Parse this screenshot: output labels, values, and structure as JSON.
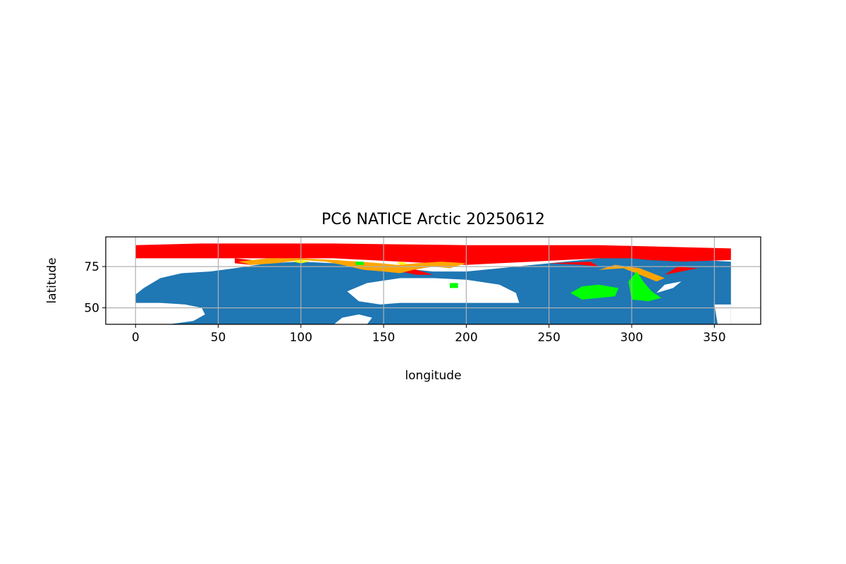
{
  "colors": {
    "ocean": "#1f77b4",
    "ice_high": "#ff0000",
    "ice_medium": "#ffa500",
    "ice_low": "#00ff00",
    "ice_trace": "#ffff00",
    "grid": "#b0b0b0",
    "background": "#ffffff"
  },
  "chart_data": {
    "type": "scatter",
    "title": "PC6 NATICE Arctic  20250612",
    "xlabel": "longitude",
    "ylabel": "latitude",
    "xlim": [
      -18,
      378
    ],
    "ylim": [
      40,
      93
    ],
    "xticks": [
      0,
      50,
      100,
      150,
      200,
      250,
      300,
      350
    ],
    "yticks": [
      50,
      75
    ],
    "grid": true,
    "legend": "none",
    "regions": [
      {
        "color_key": "ocean",
        "polygons": [
          [
            [
              0,
              53
            ],
            [
              0,
              58
            ],
            [
              5,
              62
            ],
            [
              15,
              68
            ],
            [
              28,
              71
            ],
            [
              45,
              72
            ],
            [
              60,
              74
            ],
            [
              80,
              77
            ],
            [
              100,
              78
            ],
            [
              120,
              77
            ],
            [
              140,
              76
            ],
            [
              160,
              74
            ],
            [
              180,
              72
            ],
            [
              200,
              72
            ],
            [
              220,
              74
            ],
            [
              240,
              76
            ],
            [
              260,
              78
            ],
            [
              280,
              80
            ],
            [
              300,
              81
            ],
            [
              320,
              80
            ],
            [
              340,
              79
            ],
            [
              360,
              78
            ],
            [
              360,
              40
            ],
            [
              0,
              40
            ]
          ]
        ]
      },
      {
        "color_key": "background",
        "polygons": [
          [
            [
              0,
              58
            ],
            [
              0,
              40
            ],
            [
              20,
              40
            ],
            [
              35,
              42
            ],
            [
              42,
              46
            ],
            [
              40,
              50
            ],
            [
              30,
              52
            ],
            [
              15,
              53
            ],
            [
              0,
              53
            ]
          ],
          [
            [
              0,
              44
            ],
            [
              0,
              40
            ],
            [
              4,
              40
            ],
            [
              3,
              43
            ]
          ],
          [
            [
              160,
              53
            ],
            [
              148,
              52
            ],
            [
              135,
              54
            ],
            [
              128,
              60
            ],
            [
              140,
              65
            ],
            [
              160,
              68
            ],
            [
              180,
              68
            ],
            [
              200,
              67
            ],
            [
              220,
              64
            ],
            [
              230,
              59
            ],
            [
              232,
              53
            ]
          ],
          [
            [
              315,
              59
            ],
            [
              320,
              64
            ],
            [
              330,
              66
            ],
            [
              325,
              62
            ]
          ],
          [
            [
              120,
              40
            ],
            [
              140,
              40
            ],
            [
              143,
              44
            ],
            [
              135,
              46
            ],
            [
              125,
              44
            ]
          ],
          [
            [
              350,
              52
            ],
            [
              360,
              52
            ],
            [
              360,
              40
            ],
            [
              352,
              40
            ]
          ]
        ]
      },
      {
        "color_key": "ice_high",
        "polygons": [
          [
            [
              0,
              80
            ],
            [
              0,
              88
            ],
            [
              40,
              89
            ],
            [
              120,
              89
            ],
            [
              200,
              88
            ],
            [
              280,
              88
            ],
            [
              320,
              87
            ],
            [
              360,
              86
            ],
            [
              360,
              79
            ],
            [
              330,
              78
            ],
            [
              310,
              79
            ],
            [
              300,
              80
            ],
            [
              280,
              80
            ],
            [
              260,
              79
            ],
            [
              240,
              78
            ],
            [
              220,
              77
            ],
            [
              200,
              76
            ],
            [
              180,
              77
            ],
            [
              160,
              78
            ],
            [
              140,
              79
            ],
            [
              120,
              80
            ],
            [
              100,
              80
            ],
            [
              80,
              80
            ],
            [
              60,
              80
            ],
            [
              40,
              80
            ],
            [
              20,
              80
            ]
          ],
          [
            [
              60,
              80
            ],
            [
              60,
              77
            ],
            [
              70,
              76
            ],
            [
              80,
              78
            ]
          ],
          [
            [
              150,
              74
            ],
            [
              160,
              72
            ],
            [
              170,
              70
            ],
            [
              180,
              70
            ],
            [
              170,
              73
            ],
            [
              160,
              75
            ]
          ],
          [
            [
              250,
              77
            ],
            [
              270,
              76
            ],
            [
              280,
              75
            ],
            [
              275,
              78
            ]
          ],
          [
            [
              320,
              70
            ],
            [
              330,
              72
            ],
            [
              340,
              74
            ],
            [
              328,
              75
            ]
          ]
        ]
      },
      {
        "color_key": "ice_medium",
        "polygons": [
          [
            [
              62,
              78
            ],
            [
              70,
              76
            ],
            [
              85,
              77
            ],
            [
              100,
              79
            ],
            [
              115,
              78
            ],
            [
              125,
              76
            ],
            [
              138,
              73
            ],
            [
              150,
              72
            ],
            [
              160,
              71
            ],
            [
              168,
              73
            ],
            [
              180,
              75
            ],
            [
              190,
              74
            ],
            [
              200,
              77
            ],
            [
              185,
              78
            ],
            [
              170,
              77
            ],
            [
              158,
              76
            ],
            [
              148,
              77
            ],
            [
              135,
              78
            ],
            [
              120,
              79
            ],
            [
              100,
              80
            ],
            [
              80,
              80
            ]
          ],
          [
            [
              280,
              73
            ],
            [
              295,
              74
            ],
            [
              305,
              70
            ],
            [
              315,
              66
            ],
            [
              320,
              68
            ],
            [
              305,
              74
            ],
            [
              290,
              76
            ]
          ],
          [
            [
              300,
              60
            ],
            [
              305,
              61
            ],
            [
              308,
              65
            ],
            [
              302,
              66
            ]
          ]
        ]
      },
      {
        "color_key": "ice_low",
        "polygons": [
          [
            [
              263,
              59
            ],
            [
              270,
              55
            ],
            [
              280,
              56
            ],
            [
              290,
              57
            ],
            [
              292,
              62
            ],
            [
              280,
              64
            ],
            [
              270,
              63
            ]
          ],
          [
            [
              300,
              55
            ],
            [
              310,
              54
            ],
            [
              318,
              56
            ],
            [
              312,
              60
            ],
            [
              307,
              66
            ],
            [
              303,
              72
            ],
            [
              298,
              66
            ]
          ],
          [
            [
              190,
              62
            ],
            [
              195,
              62
            ],
            [
              195,
              65
            ],
            [
              190,
              65
            ]
          ],
          [
            [
              133,
              78
            ],
            [
              138,
              78
            ],
            [
              138,
              76
            ],
            [
              133,
              76
            ]
          ]
        ]
      },
      {
        "color_key": "ice_trace",
        "polygons": [
          [
            [
              95,
              78
            ],
            [
              100,
              77
            ],
            [
              105,
              78
            ],
            [
              100,
              79
            ]
          ],
          [
            [
              158,
              77
            ],
            [
              162,
              76
            ],
            [
              164,
              77
            ],
            [
              160,
              78
            ]
          ]
        ]
      }
    ]
  }
}
